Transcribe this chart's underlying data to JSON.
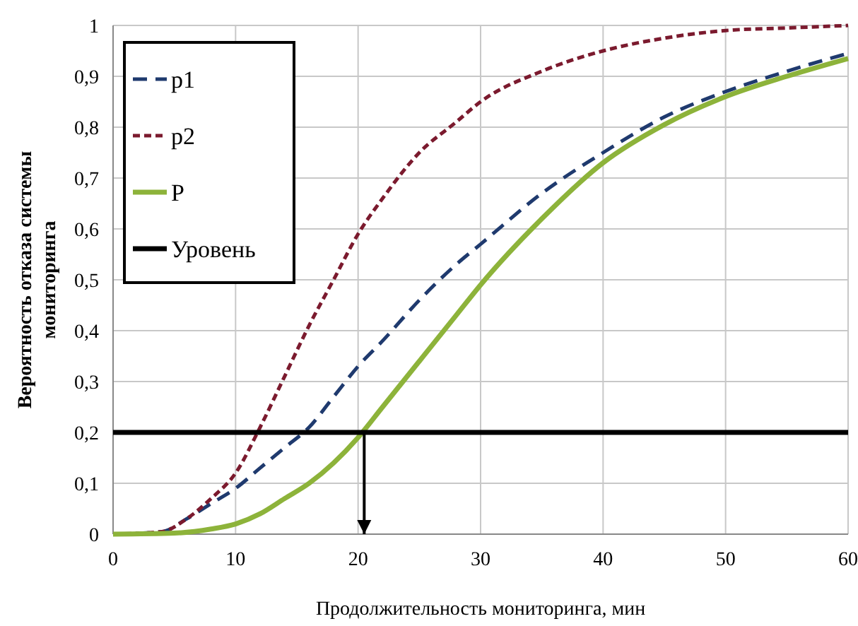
{
  "chart_data": {
    "type": "line",
    "xlabel": "Продолжительность мониторинга, мин",
    "ylabel": "Вероятность отказа системы мониторинга",
    "xlim": [
      0,
      60
    ],
    "xticks": [
      0,
      10,
      20,
      30,
      40,
      50,
      60
    ],
    "ylim": [
      0,
      1
    ],
    "yticks": [
      0,
      {
        "value": 0.1,
        "label": "0,1"
      },
      {
        "value": 0.2,
        "label": "0,2"
      },
      {
        "value": 0.3,
        "label": "0,3"
      },
      {
        "value": 0.4,
        "label": "0,4"
      },
      {
        "value": 0.5,
        "label": "0,5"
      },
      {
        "value": 0.6,
        "label": "0,6"
      },
      {
        "value": 0.7,
        "label": "0,7"
      },
      {
        "value": 0.8,
        "label": "0,8"
      },
      {
        "value": 0.9,
        "label": "0,9"
      },
      1
    ],
    "grid": true,
    "legend": "top left",
    "series": [
      {
        "name": "p1",
        "color": "#1f3a6e",
        "line_style": "dashed",
        "x": [
          0,
          4,
          6,
          8,
          10,
          12,
          14,
          16,
          18,
          20,
          22,
          25,
          28,
          30,
          35,
          40,
          45,
          50,
          55,
          60
        ],
        "values": [
          0,
          0.005,
          0.03,
          0.06,
          0.09,
          0.13,
          0.17,
          0.21,
          0.27,
          0.33,
          0.38,
          0.46,
          0.53,
          0.57,
          0.67,
          0.75,
          0.82,
          0.87,
          0.91,
          0.945
        ]
      },
      {
        "name": "p2",
        "color": "#7b1a2e",
        "line_style": "dotted",
        "x": [
          0,
          4,
          6,
          8,
          10,
          12,
          14,
          16,
          18,
          20,
          22,
          25,
          28,
          30,
          35,
          40,
          45,
          50,
          55,
          60
        ],
        "values": [
          0,
          0.005,
          0.03,
          0.07,
          0.12,
          0.21,
          0.31,
          0.41,
          0.5,
          0.59,
          0.66,
          0.75,
          0.81,
          0.85,
          0.91,
          0.95,
          0.975,
          0.99,
          0.995,
          1.0
        ]
      },
      {
        "name": "P",
        "color": "#8db33a",
        "line_style": "solid",
        "x": [
          0,
          5,
          8,
          10,
          12,
          14,
          16,
          18,
          20,
          22,
          25,
          28,
          30,
          35,
          40,
          45,
          50,
          55,
          60
        ],
        "values": [
          0,
          0.002,
          0.01,
          0.02,
          0.04,
          0.07,
          0.1,
          0.14,
          0.19,
          0.25,
          0.34,
          0.43,
          0.49,
          0.62,
          0.73,
          0.805,
          0.86,
          0.9,
          0.935
        ]
      },
      {
        "name": "Уровень",
        "color": "#000000",
        "line_style": "solid",
        "x": [
          0,
          60
        ],
        "values": [
          0.2,
          0.2
        ]
      }
    ],
    "ref_lines": [
      {
        "axis": "x",
        "value": 20.5,
        "color": "#000000"
      }
    ]
  }
}
